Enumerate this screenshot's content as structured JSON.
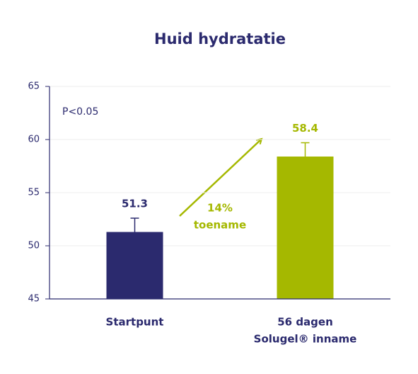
{
  "chart_data": {
    "type": "bar",
    "title": "Huid hydratatie",
    "categories": [
      [
        "Startpunt"
      ],
      [
        "56 dagen",
        "Solugel® inname"
      ]
    ],
    "values": [
      51.3,
      58.4
    ],
    "errors": [
      1.3,
      1.3
    ],
    "colors": [
      "#2b2a6e",
      "#a5b800"
    ],
    "ylim": [
      45,
      65
    ],
    "yticks": [
      45,
      50,
      55,
      60,
      65
    ],
    "grid": true,
    "annotations": {
      "pvalue": "P<0.05",
      "change": "14%",
      "change_label": "toename"
    }
  }
}
